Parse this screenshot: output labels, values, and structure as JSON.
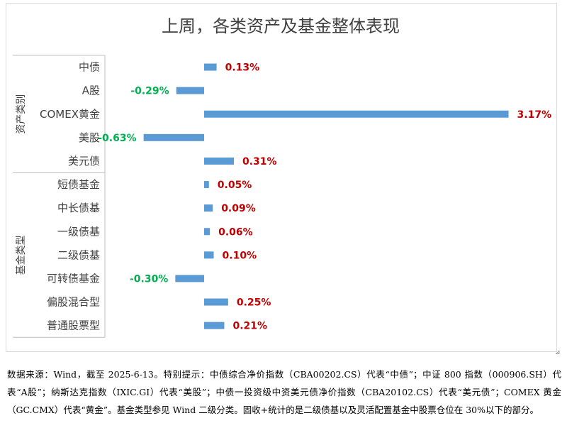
{
  "chart_data": {
    "type": "bar",
    "orientation": "horizontal",
    "title": "上周，各类资产及基金整体表现",
    "groups": [
      {
        "name": "资产类别",
        "categories": [
          "中债",
          "A股",
          "COMEX黄金",
          "美股",
          "美元债"
        ],
        "values": [
          0.13,
          -0.29,
          3.17,
          -0.63,
          0.31
        ],
        "labels": [
          "0.13%",
          "-0.29%",
          "3.17%",
          "-0.63%",
          "0.31%"
        ]
      },
      {
        "name": "基金类型",
        "categories": [
          "短债基金",
          "中长债基",
          "一级债基",
          "二级债基",
          "可转债基金",
          "偏股混合型",
          "普通股票型"
        ],
        "values": [
          0.05,
          0.09,
          0.06,
          0.1,
          -0.3,
          0.25,
          0.21
        ],
        "labels": [
          "0.05%",
          "0.09%",
          "0.06%",
          "0.10%",
          "-0.30%",
          "0.25%",
          "0.21%"
        ]
      }
    ],
    "unit": "%",
    "colors": {
      "bar": "#5b9bd5",
      "positive_label": "#c00000",
      "negative_label": "#00b050"
    },
    "grid": false,
    "legend": "none"
  },
  "footnote": "数据来源：Wind，截至 2025-6-13。特别提示：中债综合净价指数（CBA00202.CS）代表“中债”；中证 800 指数（000906.SH）代表“A股”；纳斯达克指数（IXIC.GI）代表“美股”；中债一投资级中资美元债净价指数（CBA20102.CS）代表“美元债”；COMEX 黄金（GC.CMX）代表“黄金”。基金类型参见 Wind 二级分类。固收+统计的是二级债基以及灵活配置基金中股票仓位在 30%以下的部分。",
  "resize_glyph": "⊿"
}
